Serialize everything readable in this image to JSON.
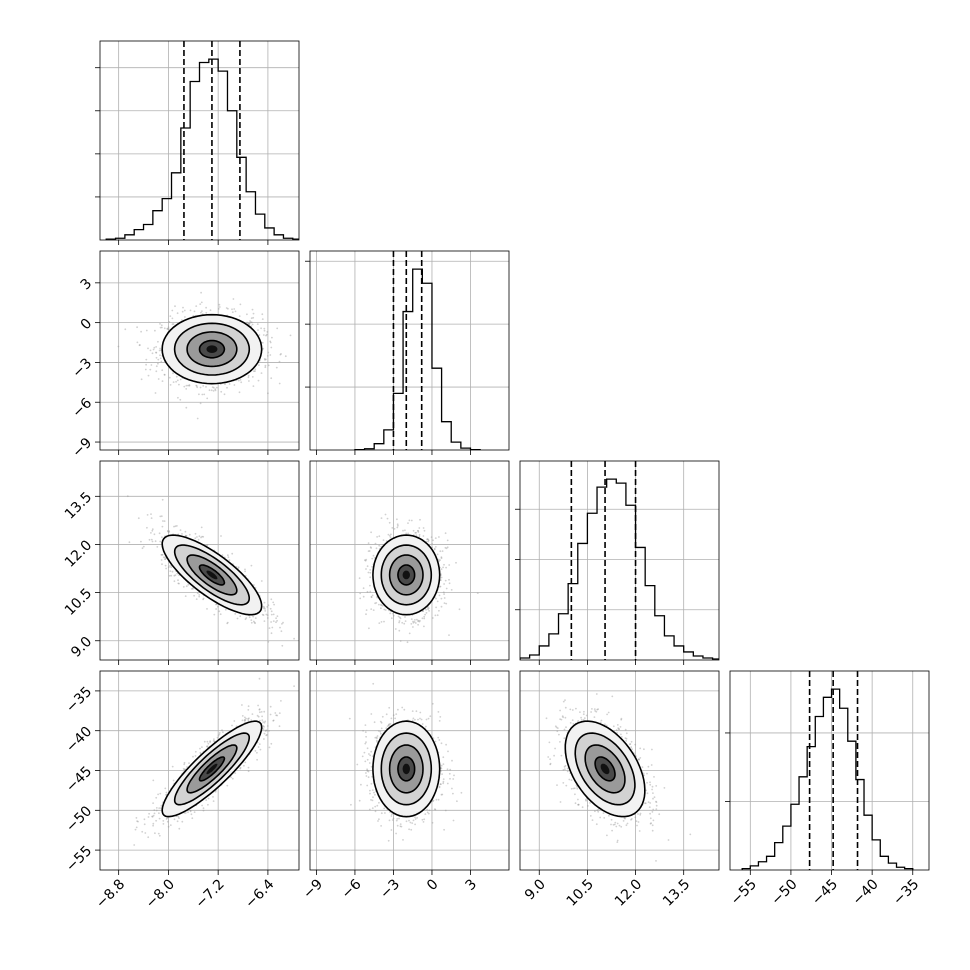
{
  "chart_data": {
    "type": "corner",
    "parameters": [
      {
        "xlim": [
          -9.1,
          -5.9
        ],
        "xticks": [
          -8.8,
          -8.0,
          -7.2,
          -6.4
        ],
        "xtick_labels": [
          "−8.8",
          "−8.0",
          "−7.2",
          "−6.4"
        ],
        "hist": {
          "edges_start": -9.0,
          "bin_width": 0.15,
          "counts": [
            1,
            2,
            6,
            12,
            18,
            34,
            48,
            78,
            130,
            184,
            206,
            210,
            196,
            150,
            96,
            56,
            30,
            14,
            6,
            2,
            1
          ]
        },
        "quantiles": [
          -7.75,
          -7.3,
          -6.85
        ]
      },
      {
        "xlim": [
          -9.5,
          6.0
        ],
        "xticks": [
          -9,
          -6,
          -3,
          0,
          3
        ],
        "xtick_labels": [
          "−9",
          "−6",
          "−3",
          "0",
          "3"
        ],
        "hist": {
          "edges_start": -6.0,
          "bin_width": 0.75,
          "counts": [
            1,
            4,
            20,
            64,
            180,
            440,
            575,
            530,
            260,
            90,
            25,
            6,
            1
          ]
        },
        "quantiles": [
          -3.0,
          -2.0,
          -0.8
        ]
      },
      {
        "xlim": [
          8.4,
          14.6
        ],
        "xticks": [
          9.0,
          10.5,
          12.0,
          13.5
        ],
        "xtick_labels": [
          "9.0",
          "10.5",
          "12.0",
          "13.5"
        ],
        "hist": {
          "edges_start": 8.4,
          "bin_width": 0.3,
          "counts": [
            2,
            5,
            14,
            26,
            46,
            76,
            116,
            146,
            172,
            180,
            176,
            154,
            112,
            74,
            44,
            24,
            14,
            8,
            4,
            2,
            1
          ]
        },
        "quantiles": [
          10.0,
          11.05,
          12.0
        ]
      },
      {
        "xlim": [
          -57.5,
          -33.0
        ],
        "xticks": [
          -55,
          -50,
          -45,
          -40,
          -35
        ],
        "xtick_labels": [
          "−55",
          "−50",
          "−45",
          "−40",
          "−35"
        ],
        "hist": {
          "edges_start": -56.0,
          "bin_width": 1.0,
          "counts": [
            1,
            3,
            6,
            10,
            20,
            32,
            48,
            68,
            90,
            112,
            126,
            132,
            118,
            94,
            66,
            40,
            22,
            10,
            5,
            2,
            1
          ]
        },
        "quantiles": [
          -47.7,
          -44.8,
          -41.8
        ]
      }
    ],
    "y_axes": [
      null,
      {
        "ylim": [
          -9.6,
          5.4
        ],
        "yticks": [
          -9,
          -6,
          -3,
          0,
          3
        ],
        "ytick_labels": [
          "−9",
          "−6",
          "−3",
          "0",
          "3"
        ]
      },
      {
        "ylim": [
          8.4,
          14.6
        ],
        "yticks": [
          9.0,
          10.5,
          12.0,
          13.5
        ],
        "ytick_labels": [
          "9.0",
          "10.5",
          "12.0",
          "13.5"
        ]
      },
      {
        "ylim": [
          -57.5,
          -32.5
        ],
        "yticks": [
          -55,
          -50,
          -45,
          -40,
          -35
        ],
        "ytick_labels": [
          "−55",
          "−50",
          "−45",
          "−40",
          "−35"
        ]
      }
    ],
    "pairs": [
      {
        "row": 1,
        "col": 0,
        "mean": [
          -7.3,
          -2.0
        ],
        "sd": [
          0.4,
          1.3
        ],
        "rho": 0.0
      },
      {
        "row": 2,
        "col": 0,
        "mean": [
          -7.3,
          11.05
        ],
        "sd": [
          0.4,
          0.62
        ],
        "rho": -0.78
      },
      {
        "row": 2,
        "col": 1,
        "mean": [
          -2.0,
          11.05
        ],
        "sd": [
          1.3,
          0.62
        ],
        "rho": 0.0
      },
      {
        "row": 3,
        "col": 0,
        "mean": [
          -7.3,
          -44.8
        ],
        "sd": [
          0.4,
          3.0
        ],
        "rho": 0.87
      },
      {
        "row": 3,
        "col": 1,
        "mean": [
          -2.0,
          -44.8
        ],
        "sd": [
          1.3,
          3.0
        ],
        "rho": 0.0
      },
      {
        "row": 3,
        "col": 2,
        "mean": [
          11.05,
          -44.8
        ],
        "sd": [
          0.62,
          3.0
        ],
        "rho": -0.45
      }
    ],
    "contour_levels_sigma": [
      0.5,
      1.0,
      1.5,
      2.0
    ],
    "grid": true,
    "histogram_y_tick_labels": false
  }
}
